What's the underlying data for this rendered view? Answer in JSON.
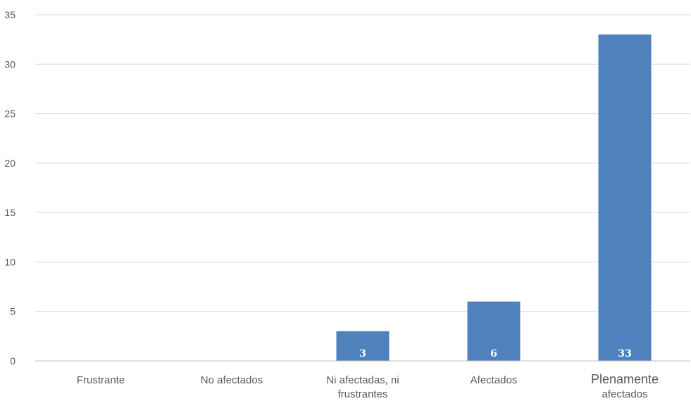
{
  "chart_data": {
    "type": "bar",
    "categories": [
      [
        "Frustrante"
      ],
      [
        "No afectados"
      ],
      [
        "Ni afectadas, ni",
        "frustrantes"
      ],
      [
        "Afectados"
      ],
      [
        "Plenamente",
        "afectados"
      ]
    ],
    "values": [
      0,
      0,
      3,
      6,
      33
    ],
    "data_labels": [
      "",
      "",
      "3",
      "6",
      "33"
    ],
    "title": "",
    "xlabel": "",
    "ylabel": "",
    "ylim": [
      0,
      35
    ],
    "yticks": [
      0,
      5,
      10,
      15,
      20,
      25,
      30,
      35
    ],
    "grid": true,
    "legend": "none",
    "bar_color": "#4f81bd"
  }
}
